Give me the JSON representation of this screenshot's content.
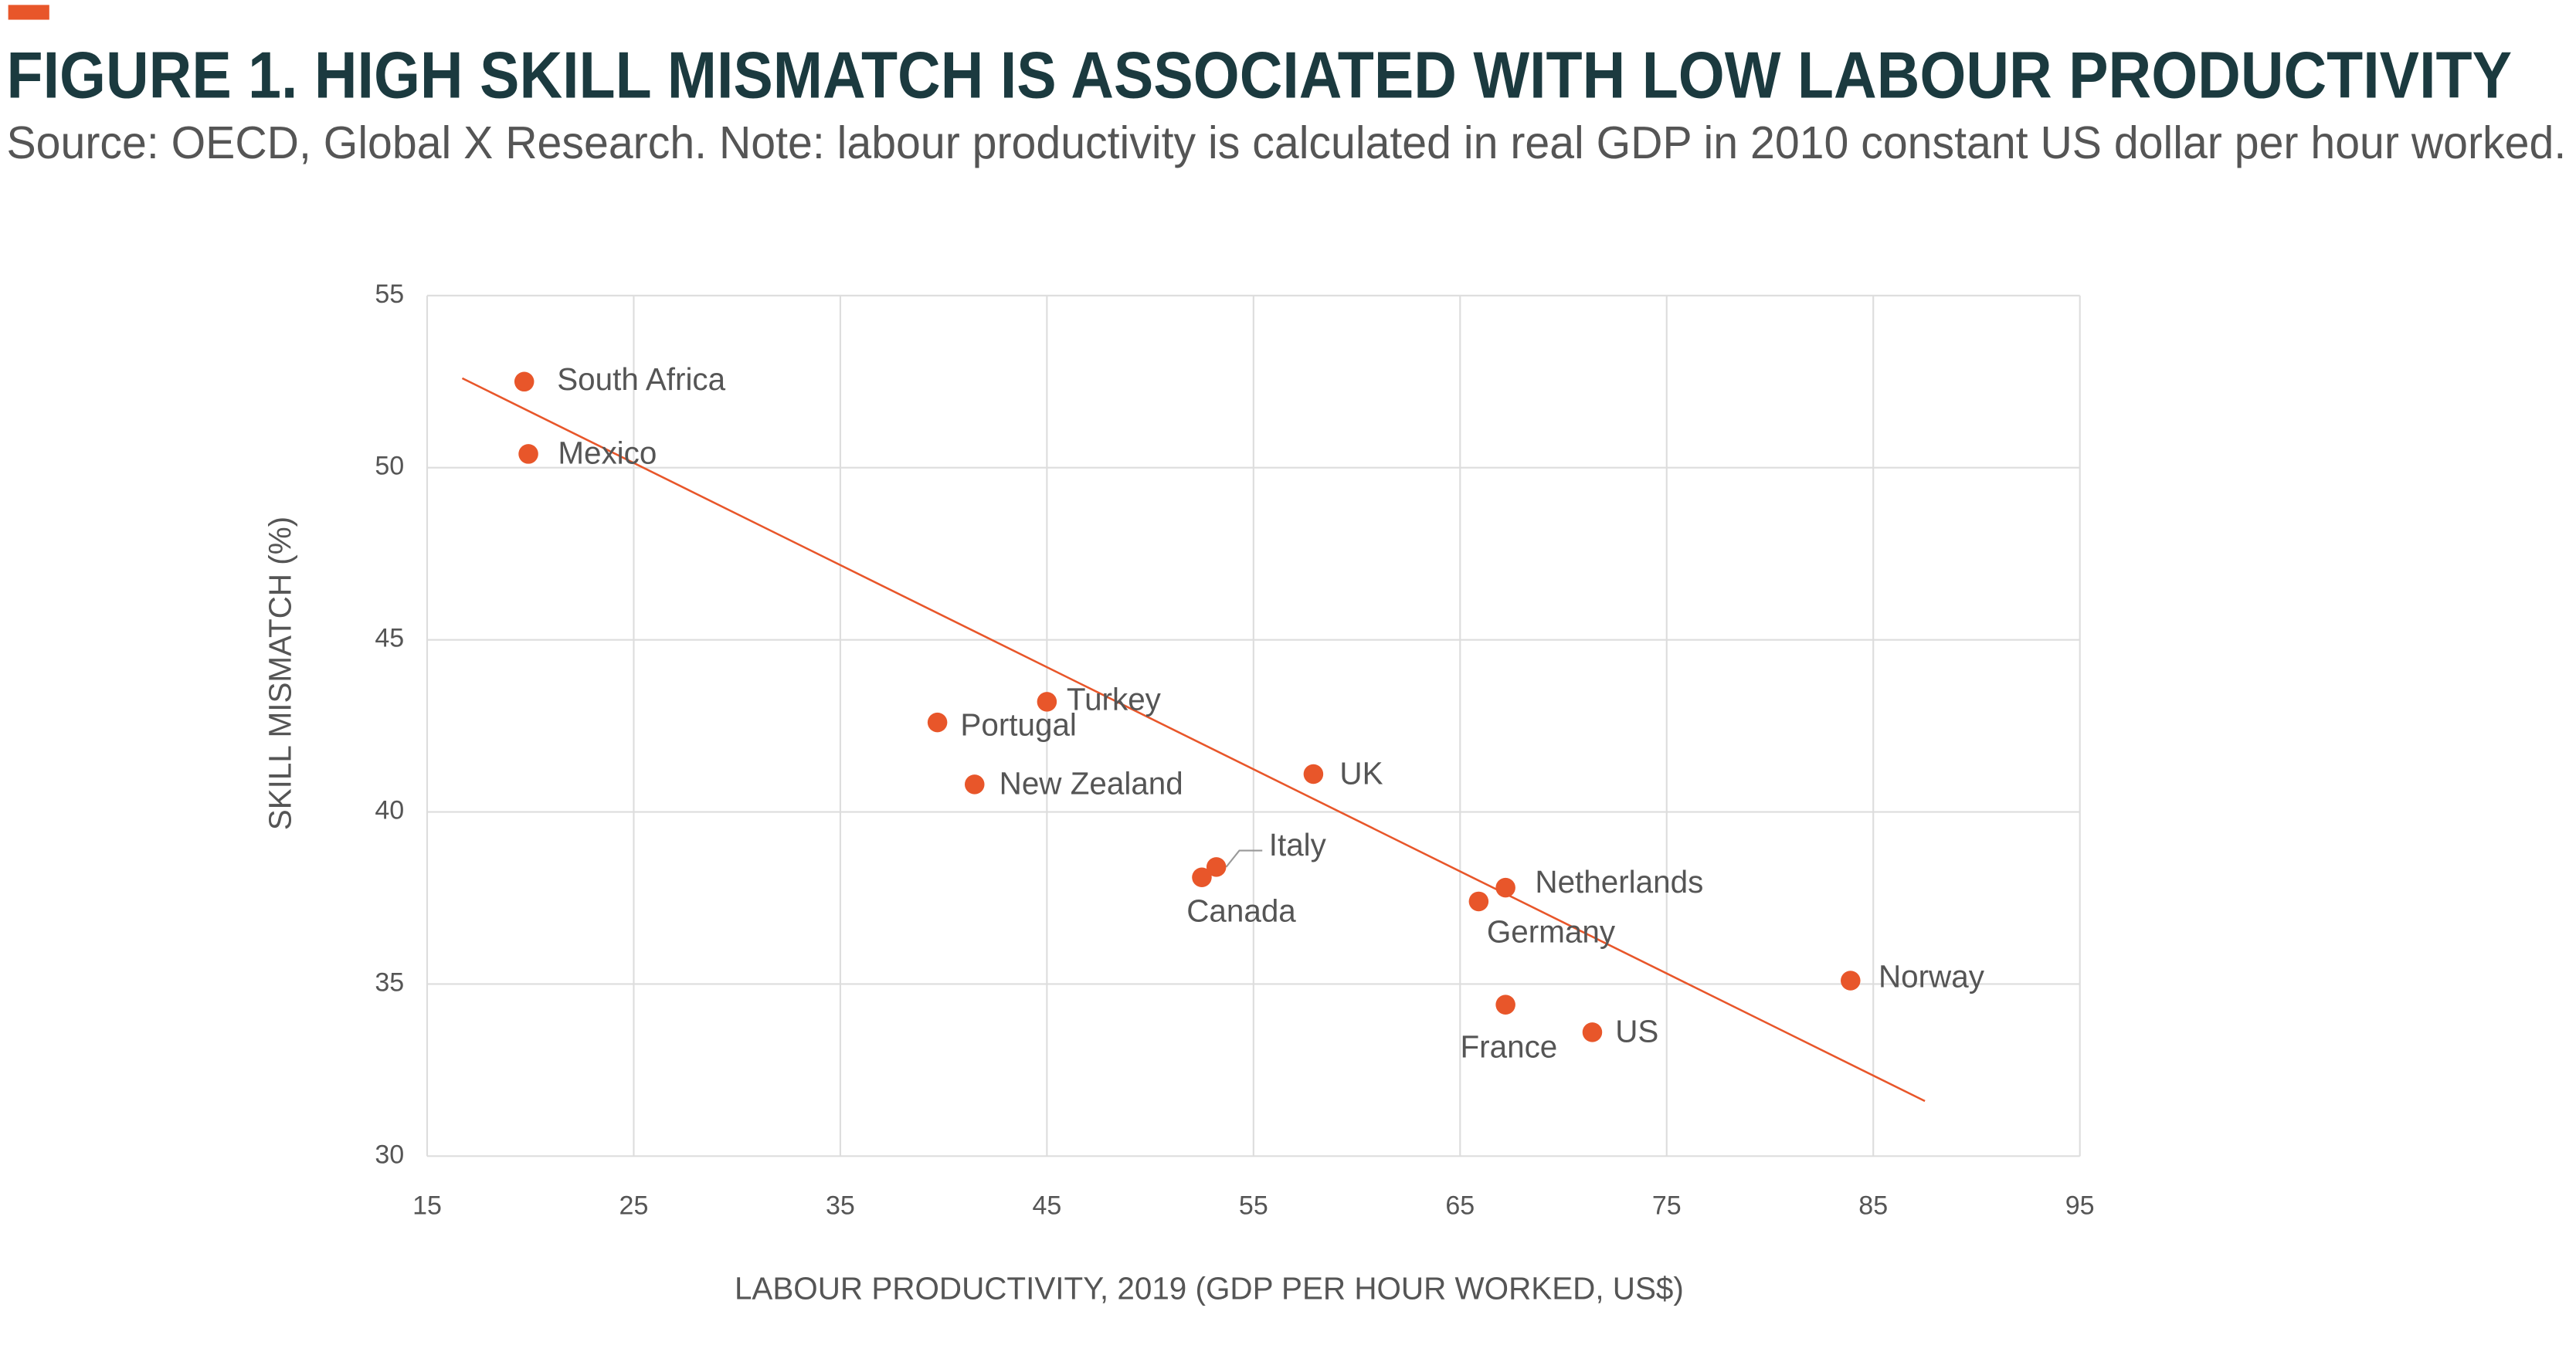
{
  "chart_data": {
    "type": "scatter",
    "title": "FIGURE 1. HIGH SKILL MISMATCH IS ASSOCIATED WITH LOW LABOUR PRODUCTIVITY",
    "subtitle": "Source: OECD, Global X Research. Note: labour productivity is calculated in real GDP in 2010 constant US dollar per hour worked.",
    "x_label": "LABOUR PRODUCTIVITY, 2019 (GDP PER HOUR WORKED, US$)",
    "y_label": "SKILL MISMATCH (%)",
    "xlim": [
      15,
      95
    ],
    "xticks": [
      15,
      25,
      35,
      45,
      55,
      65,
      75,
      85,
      95
    ],
    "ylim": [
      30,
      55
    ],
    "yticks": [
      30,
      35,
      40,
      45,
      50,
      55
    ],
    "grid": true,
    "series": [
      {
        "color": "#e8562a",
        "labels": [
          "South Africa",
          "Mexico",
          "Turkey",
          "Portugal",
          "New Zealand",
          "UK",
          "Italy",
          "Canada",
          "Netherlands",
          "Germany",
          "Norway",
          "France",
          "US"
        ],
        "x": [
          19.7,
          19.9,
          45.0,
          39.7,
          41.5,
          57.9,
          53.2,
          52.5,
          67.2,
          65.9,
          83.9,
          67.2,
          71.4
        ],
        "values": [
          52.5,
          50.4,
          43.2,
          42.6,
          40.8,
          41.1,
          38.4,
          38.1,
          37.8,
          37.4,
          35.1,
          34.4,
          33.6
        ]
      }
    ],
    "trendline": {
      "color": "#e8562a",
      "x": [
        16.7,
        87.5
      ],
      "values": [
        52.6,
        31.6
      ]
    }
  }
}
